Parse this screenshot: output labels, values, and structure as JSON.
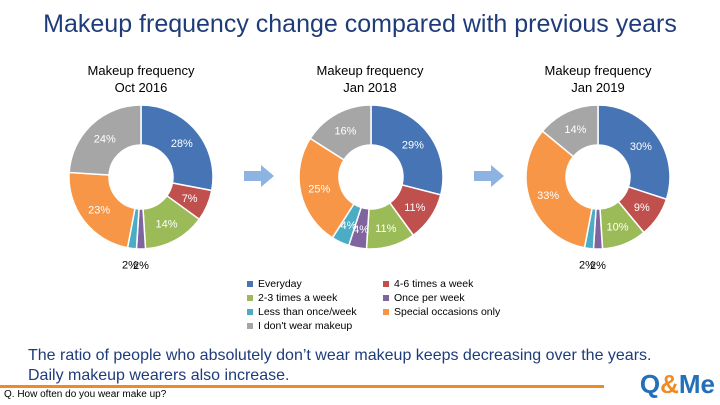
{
  "title": "Makeup frequency change compared with previous years",
  "colors": {
    "everyday": "#4674b4",
    "four_six": "#c0504d",
    "two_three": "#9bbb59",
    "once": "#7f64a0",
    "less": "#4bacc6",
    "special": "#f79646",
    "none": "#a6a6a6"
  },
  "legend": [
    {
      "label": "Everyday",
      "color": "#4674b4"
    },
    {
      "label": "4-6 times a week",
      "color": "#c0504d"
    },
    {
      "label": "2-3 times a week",
      "color": "#9bbb59"
    },
    {
      "label": "Once per week",
      "color": "#7f64a0"
    },
    {
      "label": "Less than once/week",
      "color": "#4bacc6"
    },
    {
      "label": "Special occasions only",
      "color": "#f79646"
    },
    {
      "label": "I don't wear makeup",
      "color": "#a6a6a6"
    }
  ],
  "chart_data": [
    {
      "type": "pie",
      "title": "Makeup frequency\nOct 2016",
      "categories": [
        "Everyday",
        "4-6 times a week",
        "2-3 times a week",
        "Once per week",
        "Less than once/week",
        "Special occasions only",
        "I don't wear makeup"
      ],
      "values": [
        28,
        7,
        14,
        2,
        2,
        23,
        24
      ],
      "value_labels": [
        "28%",
        "7%",
        "14%",
        "2%",
        "2%",
        "23%",
        "24%"
      ]
    },
    {
      "type": "pie",
      "title": "Makeup frequency\nJan 2018",
      "categories": [
        "Everyday",
        "4-6 times a week",
        "2-3 times a week",
        "Once per week",
        "Less than once/week",
        "Special occasions only",
        "I don't wear makeup"
      ],
      "values": [
        29,
        11,
        11,
        4,
        4,
        25,
        16
      ],
      "value_labels": [
        "29%",
        "11%",
        "11%",
        "4%",
        "4%",
        "25%",
        "16%"
      ]
    },
    {
      "type": "pie",
      "title": "Makeup frequency\nJan 2019",
      "categories": [
        "Everyday",
        "4-6 times a week",
        "2-3 times a week",
        "Once per week",
        "Less than once/week",
        "Special occasions only",
        "I don't wear makeup"
      ],
      "values": [
        30,
        9,
        10,
        2,
        2,
        33,
        14
      ],
      "value_labels": [
        "30%",
        "9%",
        "10%",
        "2%",
        "2%",
        "33%",
        "14%"
      ]
    }
  ],
  "chart_titles": [
    {
      "line1": "Makeup frequency",
      "line2": "Oct 2016"
    },
    {
      "line1": "Makeup frequency",
      "line2": "Jan 2018"
    },
    {
      "line1": "Makeup frequency",
      "line2": "Jan 2019"
    }
  ],
  "conclusion_line1": "The ratio of people who absolutely don’t wear makeup keeps decreasing over the years.",
  "conclusion_line2": "Daily makeup wearers also increase.",
  "question": "Q. How often do you wear make up?",
  "logo": {
    "part1": "Q",
    "part2": "&",
    "part3": "Me"
  }
}
